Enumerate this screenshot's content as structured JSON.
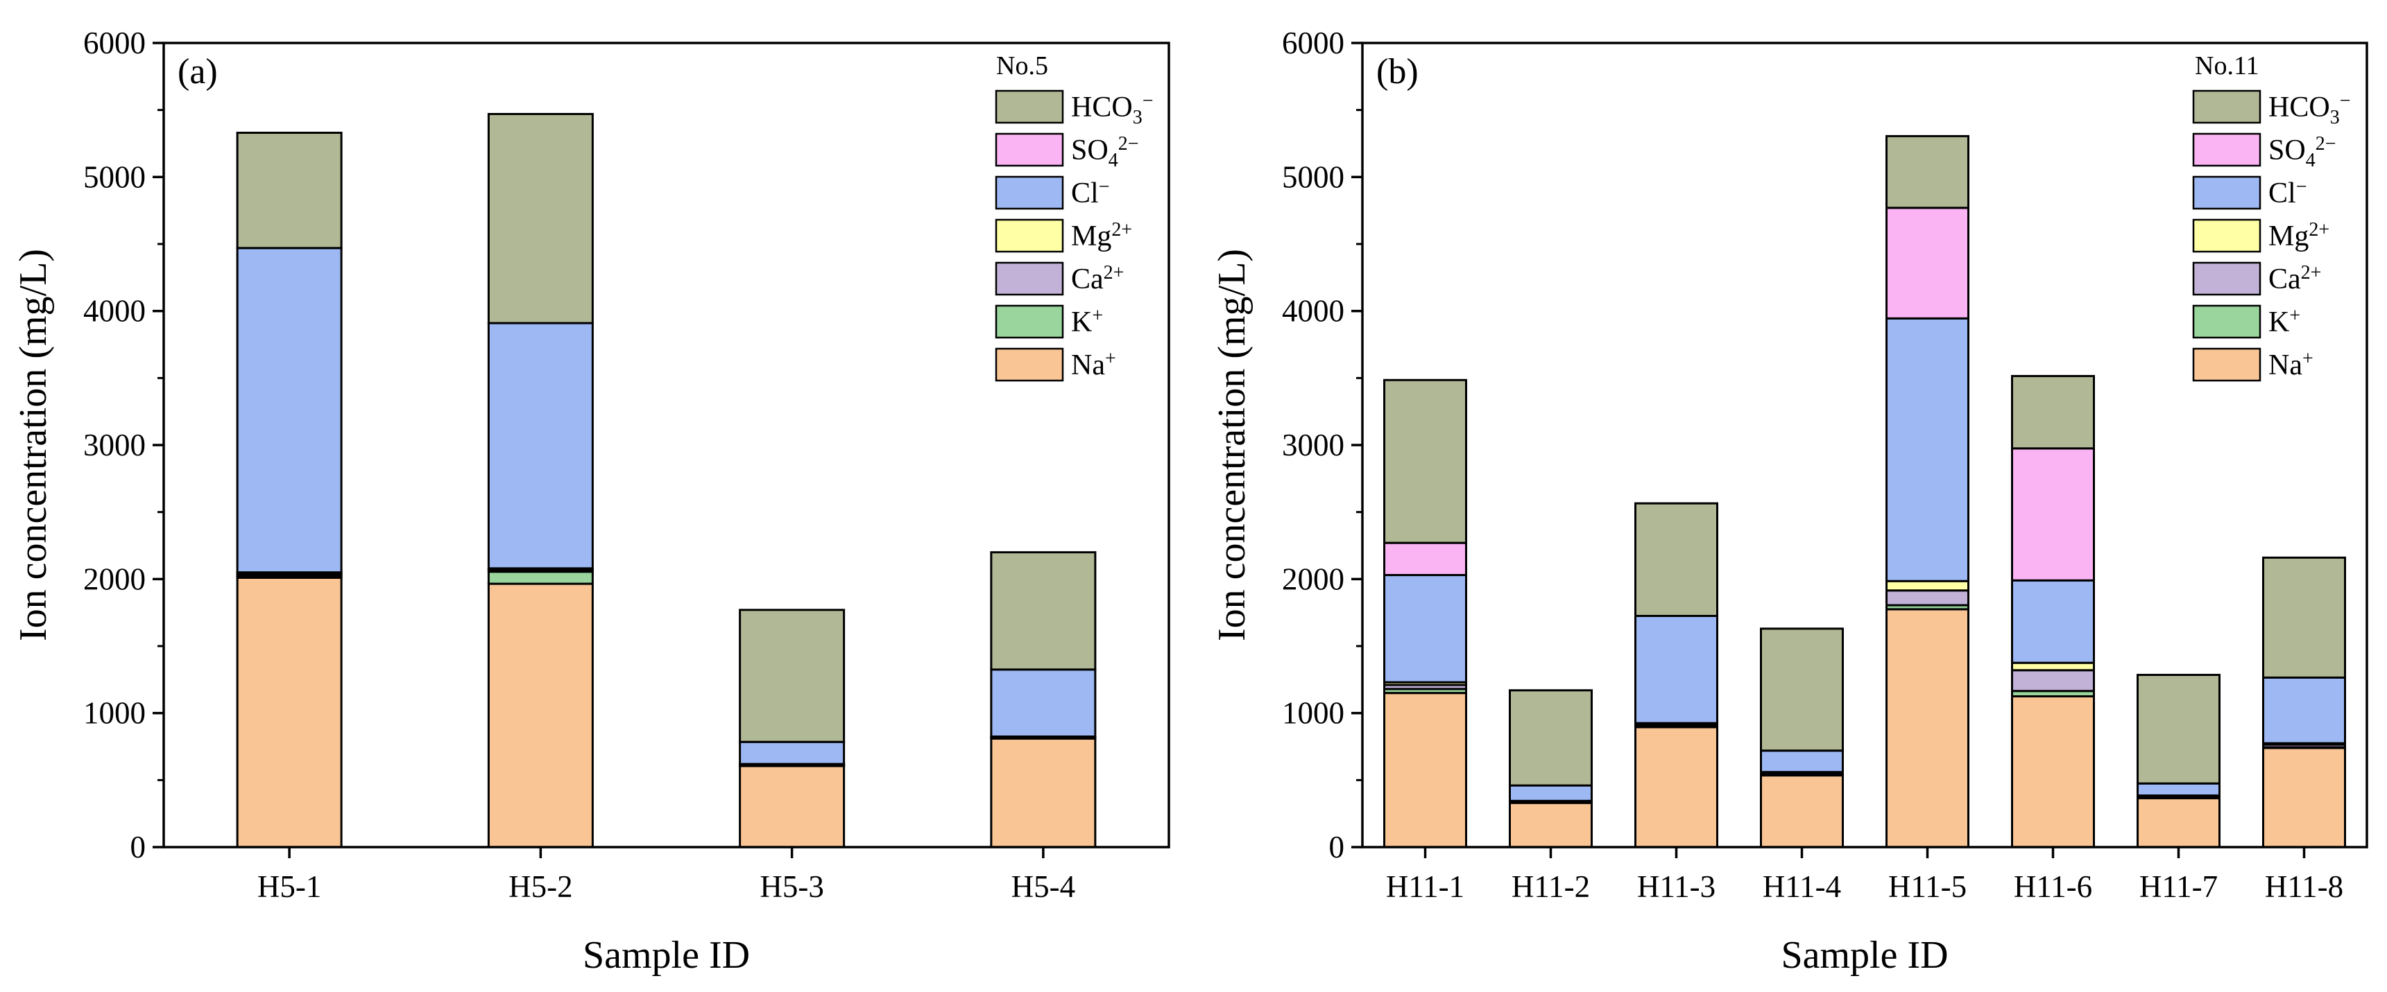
{
  "chart_data": [
    {
      "type": "bar",
      "stacked": true,
      "panel_label": "(a)",
      "legend_title": "No.5",
      "xlabel": "Sample ID",
      "ylabel": "Ion concentration (mg/L)",
      "ylim": [
        0,
        6000
      ],
      "yticks": [
        0,
        1000,
        2000,
        3000,
        4000,
        5000,
        6000
      ],
      "categories": [
        "H5-1",
        "H5-2",
        "H5-3",
        "H5-4"
      ],
      "series": [
        {
          "key": "na",
          "name": "Na+",
          "color": "#F9C595",
          "values": [
            2010,
            1965,
            605,
            810
          ]
        },
        {
          "key": "k",
          "name": "K+",
          "color": "#99D59C",
          "values": [
            15,
            90,
            5,
            5
          ]
        },
        {
          "key": "ca",
          "name": "Ca2+",
          "color": "#C2B2D8",
          "values": [
            15,
            15,
            5,
            5
          ]
        },
        {
          "key": "mg",
          "name": "Mg2+",
          "color": "#FFFFA6",
          "values": [
            10,
            10,
            5,
            5
          ]
        },
        {
          "key": "cl",
          "name": "Cl−",
          "color": "#9DB8F2",
          "values": [
            2420,
            1830,
            165,
            500
          ]
        },
        {
          "key": "so4",
          "name": "SO42−",
          "color": "#FBB4F3",
          "values": [
            0,
            0,
            0,
            0
          ]
        },
        {
          "key": "hco3",
          "name": "HCO3−",
          "color": "#B1B895",
          "values": [
            860,
            1560,
            985,
            875
          ]
        }
      ]
    },
    {
      "type": "bar",
      "stacked": true,
      "panel_label": "(b)",
      "legend_title": "No.11",
      "xlabel": "Sample ID",
      "ylabel": "Ion concentration (mg/L)",
      "ylim": [
        0,
        6000
      ],
      "yticks": [
        0,
        1000,
        2000,
        3000,
        4000,
        5000,
        6000
      ],
      "categories": [
        "H11-1",
        "H11-2",
        "H11-3",
        "H11-4",
        "H11-5",
        "H11-6",
        "H11-7",
        "H11-8"
      ],
      "series": [
        {
          "key": "na",
          "name": "Na+",
          "color": "#F9C595",
          "values": [
            1150,
            330,
            895,
            535,
            1775,
            1125,
            365,
            740
          ]
        },
        {
          "key": "k",
          "name": "K+",
          "color": "#99D59C",
          "values": [
            30,
            5,
            10,
            5,
            30,
            40,
            5,
            5
          ]
        },
        {
          "key": "ca",
          "name": "Ca2+",
          "color": "#C2B2D8",
          "values": [
            30,
            5,
            10,
            10,
            110,
            155,
            10,
            20
          ]
        },
        {
          "key": "mg",
          "name": "Mg2+",
          "color": "#FFFFA6",
          "values": [
            20,
            5,
            10,
            10,
            70,
            55,
            5,
            10
          ]
        },
        {
          "key": "cl",
          "name": "Cl−",
          "color": "#9DB8F2",
          "values": [
            800,
            115,
            800,
            160,
            1960,
            615,
            90,
            490
          ]
        },
        {
          "key": "so4",
          "name": "SO42−",
          "color": "#FBB4F3",
          "values": [
            240,
            0,
            0,
            0,
            825,
            985,
            0,
            0
          ]
        },
        {
          "key": "hco3",
          "name": "HCO3−",
          "color": "#B1B895",
          "values": [
            1215,
            710,
            840,
            910,
            535,
            540,
            810,
            895
          ]
        }
      ]
    }
  ]
}
